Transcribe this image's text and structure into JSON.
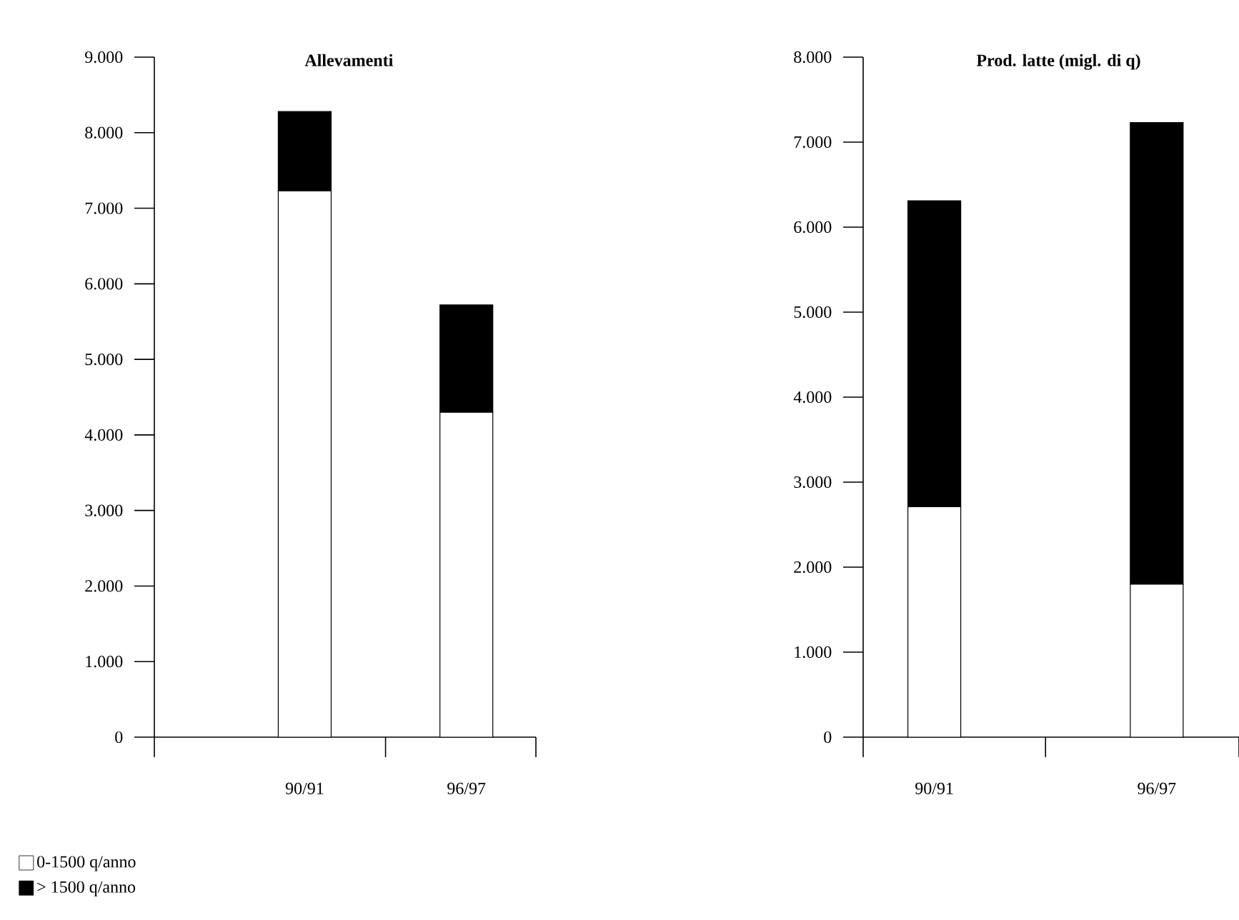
{
  "chart_data": [
    {
      "type": "bar",
      "title": "Allevamenti",
      "categories": [
        "90/91",
        "96/97"
      ],
      "stacked": true,
      "legend": "bottom left",
      "series": [
        {
          "name": "0-1500 q/anno",
          "color": "#ffffff",
          "values": [
            7230,
            4300
          ]
        },
        {
          "name": "> 1500 q/anno",
          "color": "#000000",
          "values": [
            1050,
            1420
          ]
        }
      ],
      "ylim": [
        0,
        9000
      ],
      "yticks": [
        {
          "value": 0,
          "label": "0"
        },
        {
          "value": 1000,
          "label": "1.000"
        },
        {
          "value": 2000,
          "label": "2.000"
        },
        {
          "value": 3000,
          "label": "3.000"
        },
        {
          "value": 4000,
          "label": "4.000"
        },
        {
          "value": 5000,
          "label": "5.000"
        },
        {
          "value": 6000,
          "label": "6.000"
        },
        {
          "value": 7000,
          "label": "7.000"
        },
        {
          "value": 8000,
          "label": "8.000"
        },
        {
          "value": 9000,
          "label": "9.000"
        }
      ]
    },
    {
      "type": "bar",
      "title": "Prod. latte (migl. di q)",
      "categories": [
        "90/91",
        "96/97"
      ],
      "stacked": true,
      "series": [
        {
          "color": "#ffffff",
          "values": [
            2710,
            1800
          ]
        },
        {
          "color": "#000000",
          "values": [
            3600,
            5430
          ]
        }
      ],
      "ylim": [
        0,
        8000
      ],
      "yticks": [
        {
          "value": 0,
          "label": "0"
        },
        {
          "value": 1000,
          "label": "1.000"
        },
        {
          "value": 2000,
          "label": "2.000"
        },
        {
          "value": 3000,
          "label": "3.000"
        },
        {
          "value": 4000,
          "label": "4.000"
        },
        {
          "value": 5000,
          "label": "5.000"
        },
        {
          "value": 6000,
          "label": "6.000"
        },
        {
          "value": 7000,
          "label": "7.000"
        },
        {
          "value": 8000,
          "label": "8.000"
        }
      ]
    }
  ]
}
